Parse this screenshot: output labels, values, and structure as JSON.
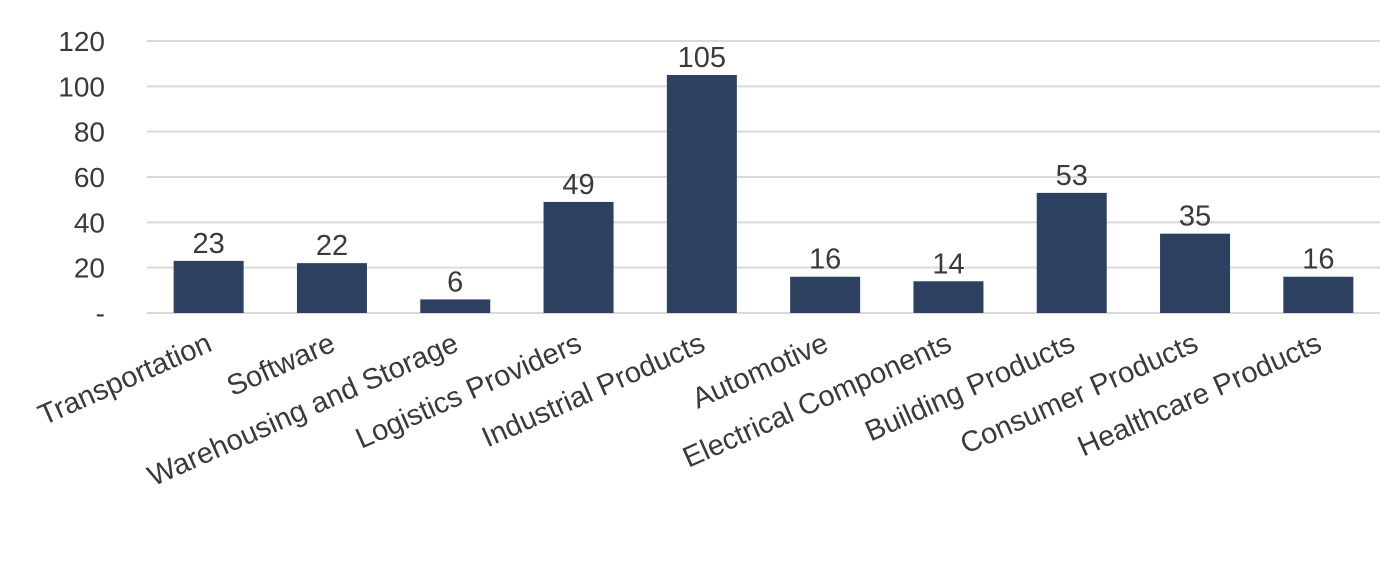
{
  "chart_data": {
    "type": "bar",
    "title": "",
    "xlabel": "",
    "ylabel": "",
    "categories": [
      "Transportation",
      "Software",
      "Warehousing and Storage",
      "Logistics Providers",
      "Industrial Products",
      "Automotive",
      "Electrical Components",
      "Building Products",
      "Consumer Products",
      "Healthcare Products"
    ],
    "values": [
      23,
      22,
      6,
      49,
      105,
      16,
      14,
      53,
      35,
      16
    ],
    "data_labels": [
      "23",
      "22",
      "6",
      "49",
      "105",
      "16",
      "14",
      "53",
      "35",
      "16"
    ],
    "ylim": [
      0,
      120
    ],
    "yticks": [
      0,
      20,
      40,
      60,
      80,
      100,
      120
    ],
    "ytick_labels": [
      "-",
      "20",
      "40",
      "60",
      "80",
      "100",
      "120"
    ],
    "grid": true,
    "legend": "none",
    "bar_color": "#2e4060",
    "grid_color": "#d9d9d9",
    "text_color": "#3a3a3a"
  }
}
